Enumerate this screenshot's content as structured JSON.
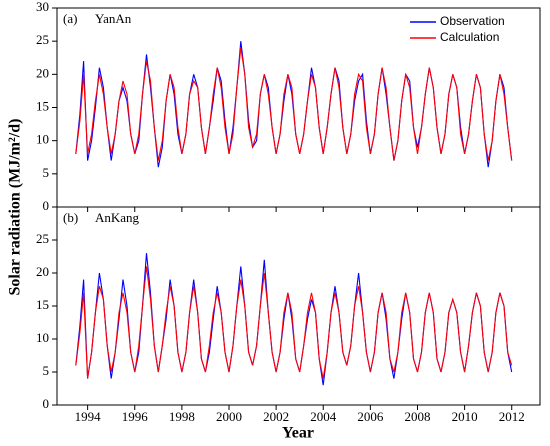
{
  "axes": {
    "ylabel": "Solar radiation (MJ/m²/d)",
    "xlabel": "Year"
  },
  "chart_data": [
    {
      "type": "line",
      "panel": "(a)",
      "title": "YanAn",
      "x": [
        1993.5,
        1993.67,
        1993.83,
        1994,
        1994.17,
        1994.33,
        1994.5,
        1994.67,
        1994.83,
        1995,
        1995.17,
        1995.33,
        1995.5,
        1995.67,
        1995.83,
        1996,
        1996.17,
        1996.33,
        1996.5,
        1996.67,
        1996.83,
        1997,
        1997.17,
        1997.33,
        1997.5,
        1997.67,
        1997.83,
        1998,
        1998.17,
        1998.33,
        1998.5,
        1998.67,
        1998.83,
        1999,
        1999.17,
        1999.33,
        1999.5,
        1999.67,
        1999.83,
        2000,
        2000.17,
        2000.33,
        2000.5,
        2000.67,
        2000.83,
        2001,
        2001.17,
        2001.33,
        2001.5,
        2001.67,
        2001.83,
        2002,
        2002.17,
        2002.33,
        2002.5,
        2002.67,
        2002.83,
        2003,
        2003.17,
        2003.33,
        2003.5,
        2003.67,
        2003.83,
        2004,
        2004.17,
        2004.33,
        2004.5,
        2004.67,
        2004.83,
        2005,
        2005.17,
        2005.33,
        2005.5,
        2005.67,
        2005.83,
        2006,
        2006.17,
        2006.33,
        2006.5,
        2006.67,
        2006.83,
        2007,
        2007.17,
        2007.33,
        2007.5,
        2007.67,
        2007.83,
        2008,
        2008.17,
        2008.33,
        2008.5,
        2008.67,
        2008.83,
        2009,
        2009.17,
        2009.33,
        2009.5,
        2009.67,
        2009.83,
        2010,
        2010.17,
        2010.33,
        2010.5,
        2010.67,
        2010.83,
        2011,
        2011.17,
        2011.33,
        2011.5,
        2011.67,
        2011.83,
        2012
      ],
      "series": [
        {
          "name": "Observation",
          "color": "#0000ff",
          "values": [
            8,
            14,
            22,
            7,
            10,
            15,
            21,
            18,
            12,
            7,
            11,
            16,
            18,
            16,
            11,
            8,
            10,
            17,
            23,
            18,
            12,
            6,
            9,
            16,
            20,
            17,
            11,
            8,
            11,
            17,
            20,
            18,
            12,
            8,
            12,
            16,
            21,
            19,
            13,
            8,
            12,
            18,
            25,
            20,
            13,
            9,
            10,
            17,
            20,
            18,
            12,
            8,
            11,
            16,
            20,
            17,
            11,
            8,
            11,
            16,
            21,
            18,
            12,
            8,
            12,
            17,
            21,
            19,
            12,
            8,
            11,
            16,
            19,
            20,
            13,
            8,
            11,
            17,
            21,
            17,
            12,
            7,
            10,
            16,
            20,
            19,
            12,
            9,
            12,
            17,
            21,
            18,
            12,
            8,
            11,
            17,
            20,
            18,
            12,
            8,
            11,
            16,
            20,
            18,
            11,
            6,
            10,
            16,
            20,
            18,
            12,
            7
          ]
        },
        {
          "name": "Calculation",
          "color": "#ff0000",
          "values": [
            8,
            13,
            20,
            8,
            11,
            16,
            20,
            17,
            12,
            8,
            11,
            16,
            19,
            17,
            11,
            8,
            11,
            17,
            22,
            19,
            12,
            7,
            10,
            16,
            20,
            18,
            12,
            8,
            11,
            17,
            19,
            18,
            12,
            8,
            12,
            17,
            21,
            18,
            12,
            8,
            11,
            18,
            24,
            20,
            12,
            9,
            11,
            17,
            20,
            17,
            12,
            8,
            11,
            17,
            20,
            18,
            11,
            8,
            11,
            16,
            20,
            18,
            12,
            8,
            12,
            17,
            21,
            18,
            12,
            8,
            11,
            17,
            20,
            19,
            12,
            8,
            11,
            17,
            21,
            18,
            12,
            7,
            10,
            16,
            20,
            18,
            12,
            8,
            12,
            17,
            21,
            18,
            12,
            8,
            11,
            17,
            20,
            18,
            11,
            8,
            11,
            16,
            20,
            18,
            11,
            7,
            10,
            16,
            20,
            17,
            12,
            7
          ]
        }
      ],
      "ylim": [
        0,
        30
      ],
      "yticks": [
        0,
        5,
        10,
        15,
        20,
        25,
        30
      ],
      "xlim": [
        1992.7,
        2013.2
      ],
      "legend": "upper right"
    },
    {
      "type": "line",
      "panel": "(b)",
      "title": "AnKang",
      "x": [
        1993.5,
        1993.67,
        1993.83,
        1994,
        1994.17,
        1994.33,
        1994.5,
        1994.67,
        1994.83,
        1995,
        1995.17,
        1995.33,
        1995.5,
        1995.67,
        1995.83,
        1996,
        1996.17,
        1996.33,
        1996.5,
        1996.67,
        1996.83,
        1997,
        1997.17,
        1997.33,
        1997.5,
        1997.67,
        1997.83,
        1998,
        1998.17,
        1998.33,
        1998.5,
        1998.67,
        1998.83,
        1999,
        1999.17,
        1999.33,
        1999.5,
        1999.67,
        1999.83,
        2000,
        2000.17,
        2000.33,
        2000.5,
        2000.67,
        2000.83,
        2001,
        2001.17,
        2001.33,
        2001.5,
        2001.67,
        2001.83,
        2002,
        2002.17,
        2002.33,
        2002.5,
        2002.67,
        2002.83,
        2003,
        2003.17,
        2003.33,
        2003.5,
        2003.67,
        2003.83,
        2004,
        2004.17,
        2004.33,
        2004.5,
        2004.67,
        2004.83,
        2005,
        2005.17,
        2005.33,
        2005.5,
        2005.67,
        2005.83,
        2006,
        2006.17,
        2006.33,
        2006.5,
        2006.67,
        2006.83,
        2007,
        2007.17,
        2007.33,
        2007.5,
        2007.67,
        2007.83,
        2008,
        2008.17,
        2008.33,
        2008.5,
        2008.67,
        2008.83,
        2009,
        2009.17,
        2009.33,
        2009.5,
        2009.67,
        2009.83,
        2010,
        2010.17,
        2010.33,
        2010.5,
        2010.67,
        2010.83,
        2011,
        2011.17,
        2011.33,
        2011.5,
        2011.67,
        2011.83,
        2012
      ],
      "series": [
        {
          "name": "Observation",
          "color": "#0000ff",
          "values": [
            6,
            12,
            19,
            4,
            8,
            14,
            20,
            16,
            9,
            4,
            8,
            13,
            19,
            15,
            8,
            5,
            8,
            15,
            23,
            17,
            9,
            5,
            9,
            13,
            19,
            15,
            8,
            5,
            8,
            14,
            19,
            14,
            7,
            5,
            8,
            13,
            18,
            14,
            8,
            5,
            9,
            15,
            21,
            15,
            8,
            6,
            9,
            15,
            22,
            14,
            8,
            5,
            8,
            13,
            17,
            13,
            7,
            5,
            9,
            13,
            16,
            14,
            7,
            3,
            8,
            14,
            18,
            14,
            8,
            6,
            9,
            15,
            20,
            14,
            8,
            5,
            8,
            14,
            17,
            13,
            7,
            4,
            8,
            13,
            17,
            14,
            7,
            5,
            8,
            14,
            17,
            14,
            7,
            5,
            8,
            14,
            16,
            14,
            8,
            5,
            9,
            14,
            17,
            15,
            8,
            5,
            8,
            14,
            17,
            15,
            8,
            5
          ]
        },
        {
          "name": "Calculation",
          "color": "#ff0000",
          "values": [
            6,
            11,
            17,
            4,
            8,
            14,
            18,
            16,
            9,
            5,
            8,
            14,
            17,
            14,
            8,
            5,
            9,
            15,
            21,
            16,
            9,
            5,
            9,
            14,
            18,
            15,
            8,
            5,
            8,
            14,
            18,
            14,
            7,
            5,
            9,
            14,
            17,
            14,
            8,
            5,
            9,
            15,
            19,
            15,
            8,
            6,
            9,
            15,
            20,
            14,
            8,
            5,
            8,
            14,
            17,
            14,
            7,
            5,
            9,
            14,
            17,
            14,
            7,
            4,
            8,
            14,
            17,
            14,
            8,
            6,
            9,
            15,
            18,
            14,
            8,
            5,
            8,
            14,
            17,
            14,
            7,
            5,
            8,
            14,
            17,
            14,
            7,
            5,
            8,
            14,
            17,
            14,
            7,
            5,
            8,
            14,
            16,
            14,
            8,
            5,
            9,
            14,
            17,
            15,
            8,
            5,
            8,
            14,
            17,
            15,
            8,
            6
          ]
        }
      ],
      "ylim": [
        0,
        30
      ],
      "yticks": [
        0,
        5,
        10,
        15,
        20,
        25
      ],
      "xlim": [
        1992.7,
        2013.2
      ],
      "xticks": [
        1994,
        1996,
        1998,
        2000,
        2002,
        2004,
        2006,
        2008,
        2010,
        2012
      ]
    }
  ]
}
